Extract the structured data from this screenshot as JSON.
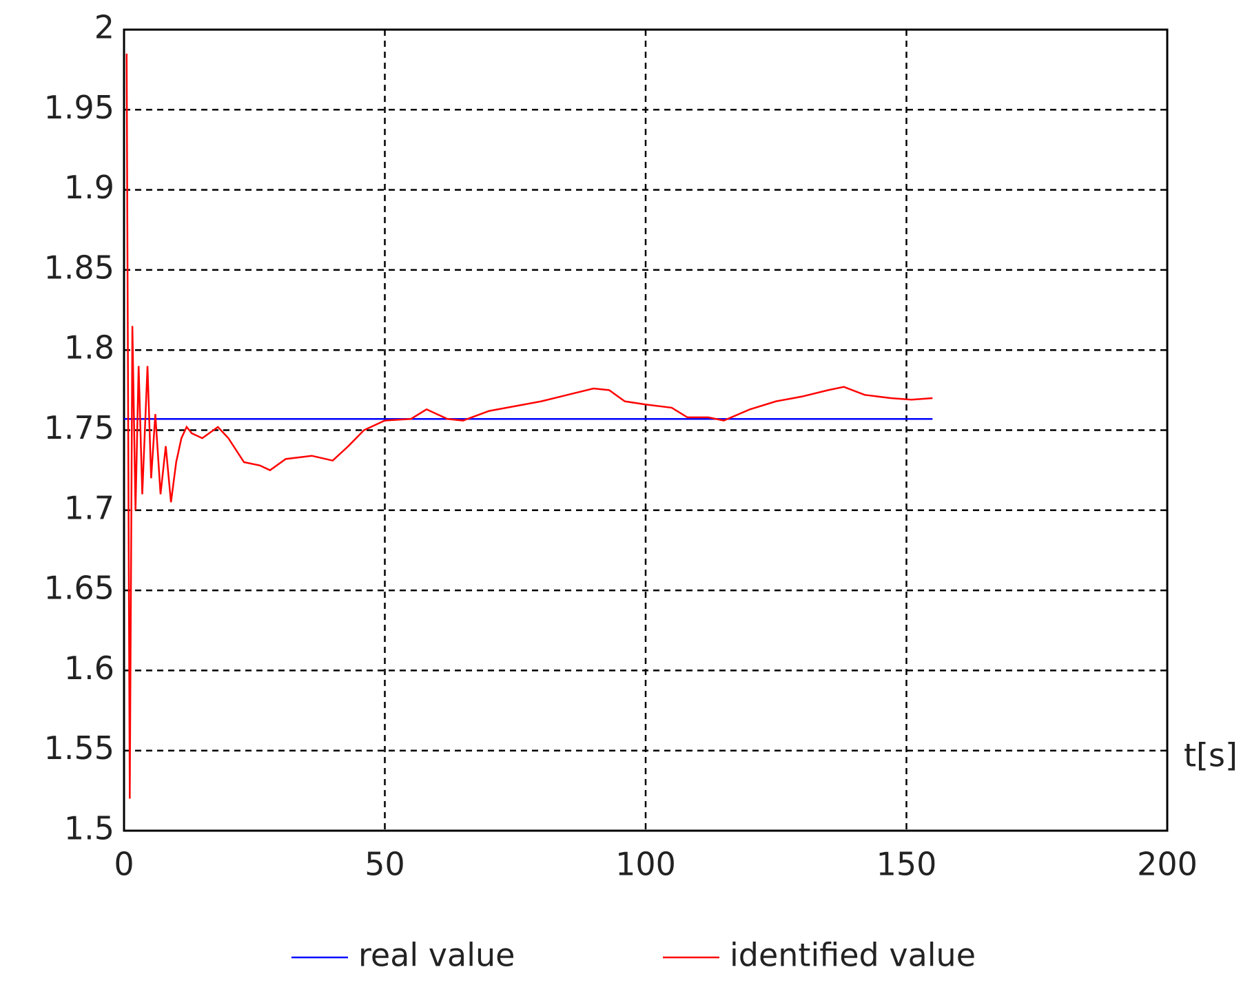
{
  "chart_data": {
    "type": "line",
    "x_label": "t[s]",
    "xlim": [
      0,
      200
    ],
    "xticks": [
      0,
      50,
      100,
      150,
      200
    ],
    "ylim": [
      1.5,
      2
    ],
    "yticks": [
      1.5,
      1.55,
      1.6,
      1.65,
      1.7,
      1.75,
      1.8,
      1.85,
      1.9,
      1.95,
      2
    ],
    "grid": true,
    "legend": "bottom",
    "series": [
      {
        "name": "real value",
        "color": "#0000ff",
        "x": [
          0,
          155
        ],
        "values": [
          1.757,
          1.757
        ]
      },
      {
        "name": "identified value",
        "color": "#ff0000",
        "x": [
          0.5,
          1.1,
          1.6,
          2.2,
          2.8,
          3.5,
          4.5,
          5.2,
          6,
          7,
          8,
          9,
          10,
          11,
          12,
          13,
          15,
          18,
          20,
          23,
          26,
          28,
          31,
          36,
          40,
          43,
          46,
          50,
          55,
          58,
          62,
          65,
          70,
          75,
          80,
          85,
          90,
          93,
          96,
          100,
          105,
          108,
          112,
          115,
          120,
          125,
          130,
          135,
          138,
          142,
          147,
          151,
          155
        ],
        "values": [
          1.985,
          1.52,
          1.815,
          1.7,
          1.79,
          1.71,
          1.79,
          1.72,
          1.76,
          1.71,
          1.74,
          1.705,
          1.73,
          1.745,
          1.752,
          1.748,
          1.745,
          1.752,
          1.745,
          1.73,
          1.728,
          1.725,
          1.732,
          1.734,
          1.731,
          1.74,
          1.75,
          1.756,
          1.757,
          1.763,
          1.757,
          1.756,
          1.762,
          1.765,
          1.768,
          1.772,
          1.776,
          1.775,
          1.768,
          1.766,
          1.764,
          1.758,
          1.758,
          1.756,
          1.763,
          1.768,
          1.771,
          1.775,
          1.777,
          1.772,
          1.77,
          1.769,
          1.77
        ]
      }
    ]
  }
}
